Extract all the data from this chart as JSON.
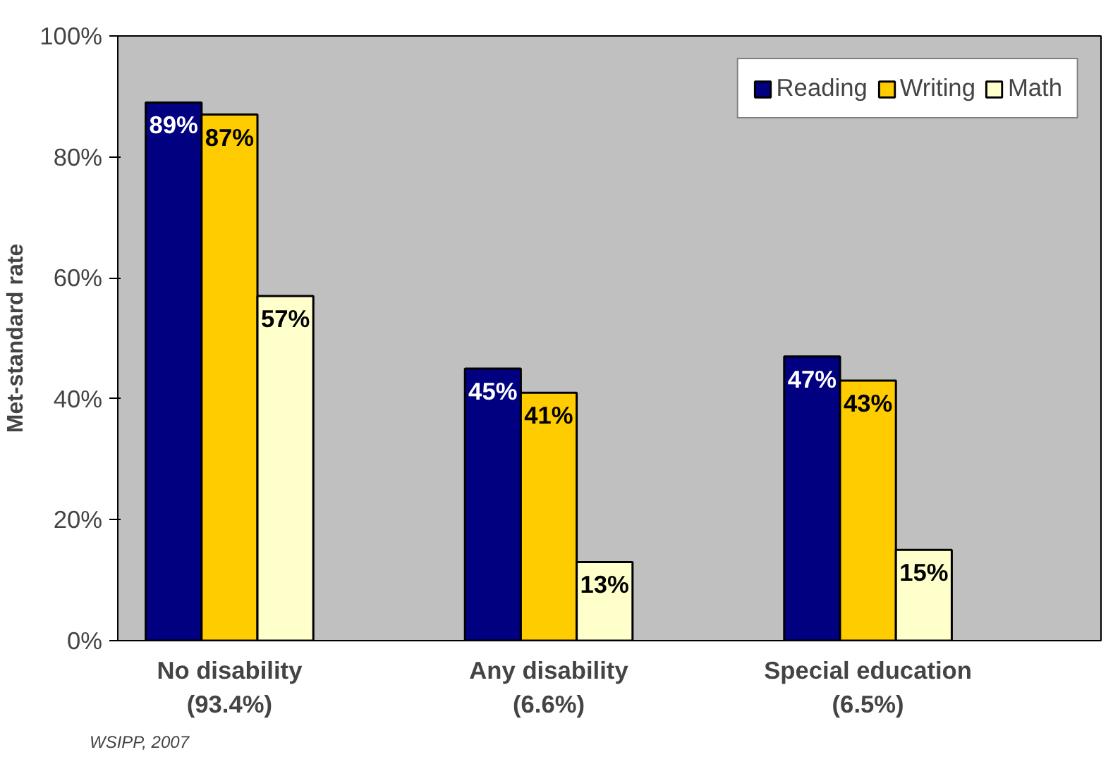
{
  "chart_data": {
    "type": "bar",
    "ylabel": "Met-standard rate",
    "categories": [
      "No disability\n(93.4%)",
      "Any disability\n(6.6%)",
      "Special education\n(6.5%)"
    ],
    "series": [
      {
        "name": "Reading",
        "color": "#000080",
        "values": [
          89,
          45,
          47
        ],
        "value_labels": [
          "89%",
          "45%",
          "47%"
        ]
      },
      {
        "name": "Writing",
        "color": "#ffcc00",
        "values": [
          87,
          41,
          43
        ],
        "value_labels": [
          "87%",
          "41%",
          "43%"
        ]
      },
      {
        "name": "Math",
        "color": "#ffffcc",
        "values": [
          57,
          13,
          15
        ],
        "value_labels": [
          "57%",
          "13%",
          "15%"
        ]
      }
    ],
    "ylim": [
      0,
      100
    ],
    "yticks": [
      {
        "value": 0,
        "label": "0%"
      },
      {
        "value": 20,
        "label": "20%"
      },
      {
        "value": 40,
        "label": "40%"
      },
      {
        "value": 60,
        "label": "60%"
      },
      {
        "value": 80,
        "label": "80%"
      },
      {
        "value": 100,
        "label": "100%"
      }
    ],
    "grid": false,
    "legend": "top right",
    "annotations": [
      "WSIPP, 2007"
    ]
  }
}
